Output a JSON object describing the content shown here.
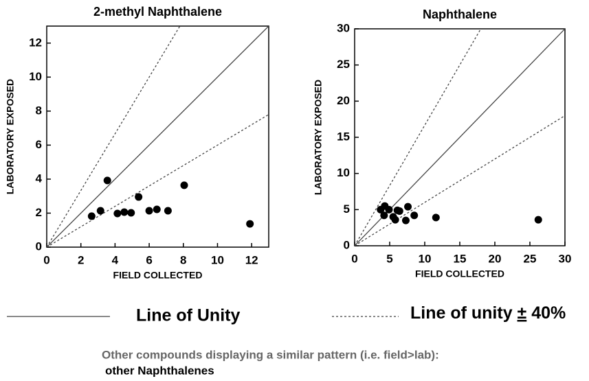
{
  "chart_data": [
    {
      "type": "scatter",
      "title": "2-methyl Naphthalene",
      "x_label": "FIELD COLLECTED",
      "y_label": "LABORATORY EXPOSED",
      "x": [
        2.63,
        3.15,
        3.55,
        4.14,
        4.54,
        4.94,
        5.38,
        6.0,
        6.45,
        7.1,
        8.05,
        11.9
      ],
      "values": [
        1.82,
        2.14,
        3.92,
        1.98,
        2.06,
        2.02,
        2.95,
        2.14,
        2.22,
        2.14,
        3.64,
        1.37
      ],
      "color": "#000000",
      "xlim": [
        0,
        13
      ],
      "ylim": [
        0,
        13
      ],
      "xticks": [
        0,
        2,
        4,
        6,
        8,
        10,
        12
      ],
      "yticks": [
        0,
        2,
        4,
        6,
        8,
        10,
        12
      ],
      "reference_lines": [
        {
          "slope": 1,
          "style": "solid"
        },
        {
          "slope": 1.667,
          "style": "dashed"
        },
        {
          "slope": 0.6,
          "style": "dashed"
        }
      ]
    },
    {
      "type": "scatter",
      "title": "Naphthalene",
      "x_label": "FIELD COLLECTED",
      "y_label": "LABORATORY EXPOSED",
      "x": [
        3.7,
        4.3,
        4.2,
        4.9,
        5.5,
        5.8,
        6.1,
        6.4,
        7.3,
        7.6,
        8.5,
        11.6,
        26.2
      ],
      "values": [
        5.0,
        5.5,
        4.2,
        5.0,
        4.0,
        3.6,
        4.9,
        4.8,
        3.5,
        5.4,
        4.2,
        3.9,
        3.6
      ],
      "color": "#000000",
      "xlim": [
        0,
        30
      ],
      "ylim": [
        0,
        30
      ],
      "xticks": [
        0,
        5,
        10,
        15,
        20,
        25,
        30
      ],
      "yticks": [
        0,
        5,
        10,
        15,
        20,
        25,
        30
      ],
      "reference_lines": [
        {
          "slope": 1,
          "style": "solid"
        },
        {
          "slope": 1.667,
          "style": "dashed"
        },
        {
          "slope": 0.6,
          "style": "dashed"
        }
      ]
    }
  ],
  "legend": {
    "solid": "Line of Unity",
    "dashed": [
      "Line of unity ",
      "±",
      " 40%"
    ]
  },
  "note": {
    "line1": "Other compounds displaying a similar pattern (i.e. field>lab):",
    "line2": "other Naphthalenes"
  }
}
